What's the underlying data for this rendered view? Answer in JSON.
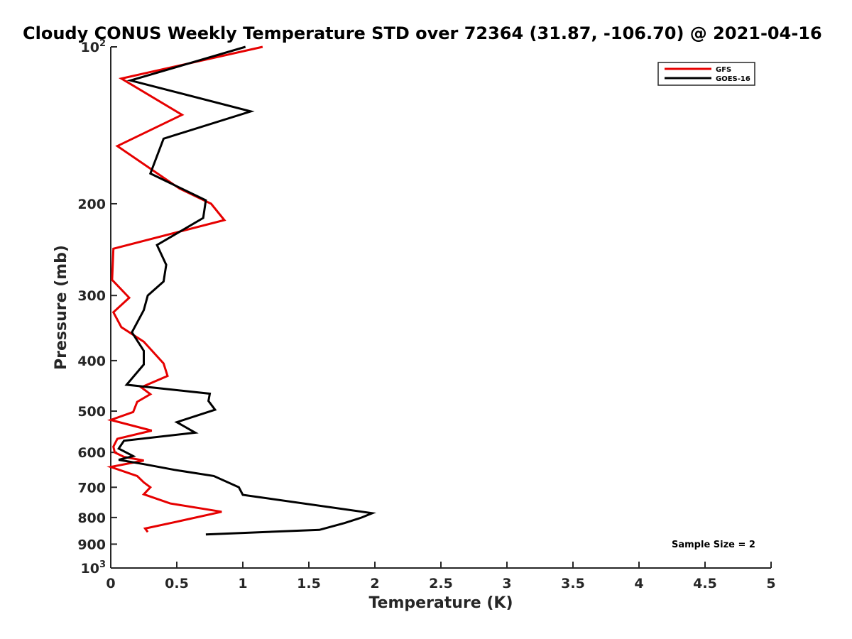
{
  "chart_data": {
    "type": "line",
    "title": "Cloudy CONUS Weekly Temperature STD over 72364 (31.87, -106.70) @ 2021-04-16",
    "xlabel": "Temperature (K)",
    "ylabel": "Pressure (mb)",
    "xlim": [
      0,
      5
    ],
    "ylim": [
      100,
      1000
    ],
    "y_scale": "log",
    "y_reversed": true,
    "grid": false,
    "legend_placement": "top-right",
    "x_ticks": [
      "0",
      "0.5",
      "1",
      "1.5",
      "2",
      "2.5",
      "3",
      "3.5",
      "4",
      "4.5",
      "5"
    ],
    "y_ticks": [
      {
        "value": 100,
        "base": "10",
        "exp": "2"
      },
      {
        "value": 200,
        "label": "200"
      },
      {
        "value": 300,
        "label": "300"
      },
      {
        "value": 400,
        "label": "400"
      },
      {
        "value": 500,
        "label": "500"
      },
      {
        "value": 600,
        "label": "600"
      },
      {
        "value": 700,
        "label": "700"
      },
      {
        "value": 800,
        "label": "800"
      },
      {
        "value": 900,
        "label": "900"
      },
      {
        "value": 1000,
        "base": "10",
        "exp": "3"
      }
    ],
    "annotation": "Sample Size = 2",
    "series": [
      {
        "name": "GFS",
        "color": "#e60000",
        "points": [
          [
            1.15,
            100
          ],
          [
            0.08,
            115
          ],
          [
            0.54,
            135
          ],
          [
            0.05,
            155
          ],
          [
            0.52,
            187
          ],
          [
            0.76,
            200
          ],
          [
            0.86,
            215
          ],
          [
            0.02,
            244
          ],
          [
            0.01,
            280
          ],
          [
            0.14,
            303
          ],
          [
            0.02,
            323
          ],
          [
            0.08,
            345
          ],
          [
            0.25,
            368
          ],
          [
            0.4,
            405
          ],
          [
            0.43,
            428
          ],
          [
            0.23,
            450
          ],
          [
            0.3,
            464
          ],
          [
            0.2,
            480
          ],
          [
            0.17,
            502
          ],
          [
            0.0,
            520
          ],
          [
            0.31,
            545
          ],
          [
            0.05,
            565
          ],
          [
            0.02,
            585
          ],
          [
            0.03,
            600
          ],
          [
            0.1,
            612
          ],
          [
            0.25,
            622
          ],
          [
            0.0,
            640
          ],
          [
            0.2,
            666
          ],
          [
            0.25,
            685
          ],
          [
            0.3,
            700
          ],
          [
            0.25,
            722
          ],
          [
            0.45,
            752
          ],
          [
            0.84,
            780
          ],
          [
            0.5,
            815
          ],
          [
            0.26,
            840
          ],
          [
            0.28,
            853
          ]
        ]
      },
      {
        "name": "GOES-16",
        "color": "#000000",
        "points": [
          [
            1.02,
            100
          ],
          [
            0.15,
            116
          ],
          [
            1.06,
            133
          ],
          [
            0.4,
            150
          ],
          [
            0.3,
            175
          ],
          [
            0.72,
            197
          ],
          [
            0.7,
            213
          ],
          [
            0.35,
            240
          ],
          [
            0.42,
            262
          ],
          [
            0.4,
            282
          ],
          [
            0.28,
            300
          ],
          [
            0.25,
            320
          ],
          [
            0.16,
            353
          ],
          [
            0.25,
            383
          ],
          [
            0.25,
            407
          ],
          [
            0.12,
            445
          ],
          [
            0.75,
            463
          ],
          [
            0.74,
            478
          ],
          [
            0.79,
            497
          ],
          [
            0.5,
            525
          ],
          [
            0.64,
            550
          ],
          [
            0.1,
            570
          ],
          [
            0.06,
            590
          ],
          [
            0.17,
            610
          ],
          [
            0.06,
            620
          ],
          [
            0.25,
            632
          ],
          [
            0.48,
            648
          ],
          [
            0.78,
            666
          ],
          [
            0.97,
            700
          ],
          [
            1.0,
            724
          ],
          [
            1.98,
            785
          ],
          [
            1.9,
            800
          ],
          [
            1.77,
            820
          ],
          [
            1.58,
            845
          ],
          [
            0.72,
            862
          ]
        ]
      }
    ]
  }
}
